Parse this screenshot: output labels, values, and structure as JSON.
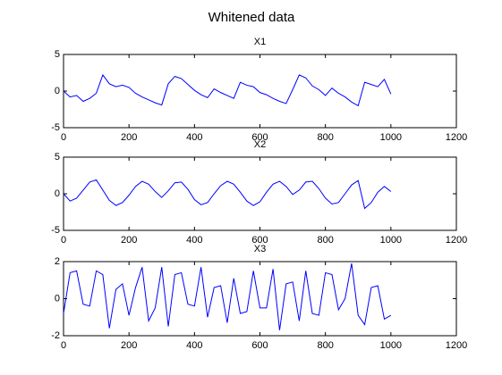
{
  "title": "Whitened data",
  "chart_data": [
    {
      "type": "line",
      "title": "X1",
      "x": [
        0,
        20,
        40,
        60,
        80,
        100,
        120,
        140,
        160,
        180,
        200,
        220,
        240,
        260,
        280,
        300,
        320,
        340,
        360,
        380,
        400,
        420,
        440,
        460,
        480,
        500,
        520,
        540,
        560,
        580,
        600,
        620,
        640,
        660,
        680,
        700,
        720,
        740,
        760,
        780,
        800,
        820,
        840,
        860,
        880,
        900,
        920,
        940,
        960,
        980,
        1000
      ],
      "series": [
        {
          "color": "#0000ff",
          "values": [
            0,
            -0.8,
            -0.6,
            -1.4,
            -1.0,
            -0.3,
            2.2,
            1.0,
            0.6,
            0.8,
            0.5,
            -0.3,
            -0.8,
            -1.2,
            -1.6,
            -1.9,
            1.0,
            2.0,
            1.7,
            0.9,
            0.1,
            -0.5,
            -0.9,
            0.3,
            -0.2,
            -0.6,
            -1.0,
            1.2,
            0.8,
            0.6,
            -0.2,
            -0.5,
            -1.0,
            -1.4,
            -1.7,
            0.2,
            2.2,
            1.8,
            0.7,
            0.2,
            -0.6,
            0.4,
            -0.3,
            -0.8,
            -1.5,
            -2.0,
            1.2,
            0.9,
            0.6,
            1.6,
            -0.4
          ]
        }
      ],
      "xlim": [
        0,
        1200
      ],
      "xticks": [
        0,
        200,
        400,
        600,
        800,
        1000,
        1200
      ],
      "ylim": [
        -5,
        5
      ],
      "yticks": [
        -5,
        0,
        5
      ]
    },
    {
      "type": "line",
      "title": "X2",
      "x": [
        0,
        20,
        40,
        60,
        80,
        100,
        120,
        140,
        160,
        180,
        200,
        220,
        240,
        260,
        280,
        300,
        320,
        340,
        360,
        380,
        400,
        420,
        440,
        460,
        480,
        500,
        520,
        540,
        560,
        580,
        600,
        620,
        640,
        660,
        680,
        700,
        720,
        740,
        760,
        780,
        800,
        820,
        840,
        860,
        880,
        900,
        920,
        940,
        960,
        980,
        1000
      ],
      "series": [
        {
          "color": "#0000ff",
          "values": [
            0.0,
            -1.0,
            -0.6,
            0.5,
            1.6,
            1.9,
            0.5,
            -0.9,
            -1.6,
            -1.2,
            -0.2,
            1.0,
            1.7,
            1.3,
            0.3,
            -0.5,
            0.4,
            1.5,
            1.6,
            0.6,
            -0.8,
            -1.5,
            -1.2,
            0.0,
            1.1,
            1.7,
            1.3,
            0.2,
            -1.0,
            -1.6,
            -1.1,
            0.2,
            1.3,
            1.7,
            1.0,
            -0.1,
            0.5,
            1.6,
            1.7,
            0.7,
            -0.6,
            -1.4,
            -1.2,
            0.0,
            1.2,
            1.8,
            -2.0,
            -1.2,
            0.2,
            1.0,
            0.3
          ]
        }
      ],
      "xlim": [
        0,
        1200
      ],
      "xticks": [
        0,
        200,
        400,
        600,
        800,
        1000,
        1200
      ],
      "ylim": [
        -5,
        5
      ],
      "yticks": [
        -5,
        0,
        5
      ]
    },
    {
      "type": "line",
      "title": "X3",
      "x": [
        0,
        20,
        40,
        60,
        80,
        100,
        120,
        140,
        160,
        180,
        200,
        220,
        240,
        260,
        280,
        300,
        320,
        340,
        360,
        380,
        400,
        420,
        440,
        460,
        480,
        500,
        520,
        540,
        560,
        580,
        600,
        620,
        640,
        660,
        680,
        700,
        720,
        740,
        760,
        780,
        800,
        820,
        840,
        860,
        880,
        900,
        920,
        940,
        960,
        980,
        1000
      ],
      "series": [
        {
          "color": "#0000ff",
          "values": [
            -0.8,
            1.4,
            1.5,
            -0.3,
            -0.4,
            1.5,
            1.3,
            -1.6,
            0.5,
            0.8,
            -0.9,
            0.6,
            1.7,
            -1.2,
            -0.5,
            1.7,
            -1.5,
            1.3,
            1.4,
            -0.3,
            -0.4,
            1.7,
            -1.0,
            0.6,
            0.7,
            -1.3,
            1.1,
            -0.8,
            -0.7,
            1.5,
            -0.5,
            -0.5,
            1.6,
            -1.7,
            0.8,
            0.9,
            -1.2,
            1.5,
            -0.8,
            -0.9,
            1.4,
            1.3,
            -0.6,
            0.0,
            1.9,
            -0.9,
            -1.4,
            0.6,
            0.7,
            -1.1,
            -0.9
          ]
        }
      ],
      "xlim": [
        0,
        1200
      ],
      "xticks": [
        0,
        200,
        400,
        600,
        800,
        1000,
        1200
      ],
      "ylim": [
        -2,
        2
      ],
      "yticks": [
        -2,
        0,
        2
      ]
    }
  ]
}
